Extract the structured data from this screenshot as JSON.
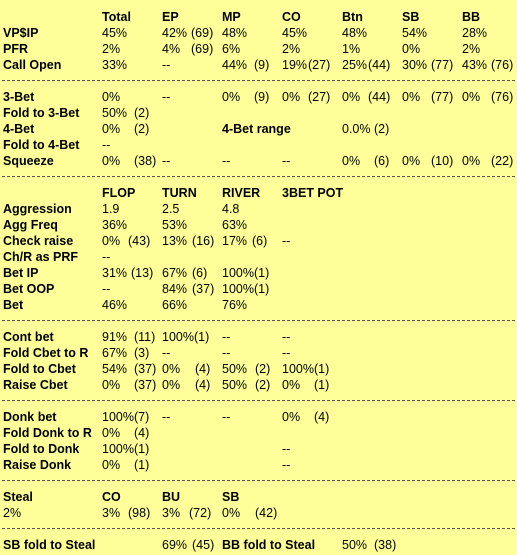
{
  "header": {
    "total": "Total",
    "ep": "EP",
    "mp": "MP",
    "co": "CO",
    "btn": "Btn",
    "sb": "SB",
    "bb": "BB"
  },
  "preflop": {
    "vpip": {
      "label": "VP$IP",
      "total": "45%",
      "ep": "42%",
      "ep_n": "(69)",
      "mp": "48%",
      "co": "45%",
      "btn": "48%",
      "sb": "54%",
      "bb": "28%"
    },
    "pfr": {
      "label": "PFR",
      "total": "2%",
      "ep": "4%",
      "ep_n": "(69)",
      "mp": "6%",
      "co": "2%",
      "btn": "1%",
      "sb": "0%",
      "bb": "2%"
    },
    "call_open": {
      "label": "Call Open",
      "total": "33%",
      "ep": "--",
      "mp": "44%",
      "mp_n": "(9)",
      "co": "19%",
      "co_n": "(27)",
      "btn": "25%",
      "btn_n": "(44)",
      "sb": "30%",
      "sb_n": "(77)",
      "bb": "43%",
      "bb_n": "(76)"
    }
  },
  "threebet": {
    "three_bet": {
      "label": "3-Bet",
      "total": "0%",
      "ep": "--",
      "mp": "0%",
      "mp_n": "(9)",
      "co": "0%",
      "co_n": "(27)",
      "btn": "0%",
      "btn_n": "(44)",
      "sb": "0%",
      "sb_n": "(77)",
      "bb": "0%",
      "bb_n": "(76)"
    },
    "fold_to_3bet": {
      "label": "Fold to 3-Bet",
      "total": "50%",
      "total_n": "(2)"
    },
    "four_bet": {
      "label": "4-Bet",
      "total": "0%",
      "total_n": "(2)",
      "range_label": "4-Bet range",
      "range": "0.0%",
      "range_n": "(2)"
    },
    "fold_to_4bet": {
      "label": "Fold to 4-Bet",
      "total": "--"
    },
    "squeeze": {
      "label": "Squeeze",
      "total": "0%",
      "total_n": "(38)",
      "ep": "--",
      "mp": "--",
      "co": "--",
      "btn": "0%",
      "btn_n": "(6)",
      "sb": "0%",
      "sb_n": "(10)",
      "bb": "0%",
      "bb_n": "(22)"
    }
  },
  "postflop_header": {
    "flop": "FLOP",
    "turn": "TURN",
    "river": "RIVER",
    "threebet_pot": "3BET POT"
  },
  "postflop": {
    "aggression": {
      "label": "Aggression",
      "flop": "1.9",
      "turn": "2.5",
      "river": "4.8"
    },
    "agg_freq": {
      "label": "Agg Freq",
      "flop": "36%",
      "turn": "53%",
      "river": "63%"
    },
    "check_raise": {
      "label": "Check raise",
      "flop": "0%",
      "flop_n": "(43)",
      "turn": "13%",
      "turn_n": "(16)",
      "river": "17%",
      "river_n": "(6)",
      "pot": "--"
    },
    "chr_prf": {
      "label": "Ch/R as PRF",
      "flop": "--"
    },
    "bet_ip": {
      "label": "Bet IP",
      "flop": "31%",
      "flop_n": "(13)",
      "turn": "67%",
      "turn_n": "(6)",
      "river": "100%(1)"
    },
    "bet_oop": {
      "label": "Bet OOP",
      "flop": "--",
      "turn": "84%",
      "turn_n": "(37)",
      "river": "100%(1)"
    },
    "bet": {
      "label": "Bet",
      "flop": "46%",
      "turn": "66%",
      "river": "76%"
    }
  },
  "cbet": {
    "cont_bet": {
      "label": "Cont bet",
      "flop": "91%",
      "flop_n": "(11)",
      "turn": "100%(1)",
      "river": "--",
      "pot": "--"
    },
    "fold_cbet_r": {
      "label": "Fold Cbet to R",
      "flop": "67%",
      "flop_n": "(3)",
      "turn": "--",
      "river": "--",
      "pot": "--"
    },
    "fold_to_cbet": {
      "label": "Fold to Cbet",
      "flop": "54%",
      "flop_n": "(37)",
      "turn": "0%",
      "turn_n": "(4)",
      "river": "50%",
      "river_n": "(2)",
      "pot": "100%(1)"
    },
    "raise_cbet": {
      "label": "Raise Cbet",
      "flop": "0%",
      "flop_n": "(37)",
      "turn": "0%",
      "turn_n": "(4)",
      "river": "50%",
      "river_n": "(2)",
      "pot": "0%",
      "pot_n": "(1)"
    }
  },
  "donk": {
    "donk_bet": {
      "label": "Donk bet",
      "flop": "100%(7)",
      "turn": "--",
      "river": "--",
      "pot": "0%",
      "pot_n": "(4)"
    },
    "fold_donk_r": {
      "label": "Fold Donk to R",
      "flop": "0%",
      "flop_n": "(4)"
    },
    "fold_to_donk": {
      "label": "Fold to Donk",
      "flop": "100%(1)",
      "pot": "--"
    },
    "raise_donk": {
      "label": "Raise Donk",
      "flop": "0%",
      "flop_n": "(1)",
      "pot": "--"
    }
  },
  "steal": {
    "label": "Steal",
    "total": "2%",
    "co_label": "CO",
    "bu_label": "BU",
    "sb_label": "SB",
    "co": "3%",
    "co_n": "(98)",
    "bu": "3%",
    "bu_n": "(72)",
    "sb": "0%",
    "sb_n": "(42)"
  },
  "steal_defense": {
    "sb_label": "SB fold to Steal",
    "sb": "69%",
    "sb_n": "(45)",
    "bb_label": "BB fold to Steal",
    "bb": "50%",
    "bb_n": "(38)"
  }
}
